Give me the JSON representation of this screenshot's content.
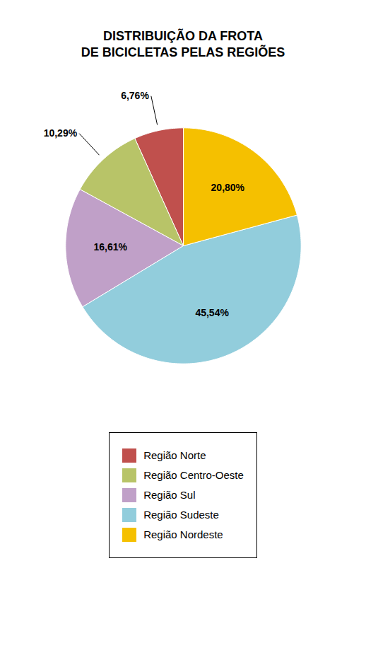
{
  "chart_data": {
    "type": "pie",
    "title": "DISTRIBUIÇÃO DA FROTA\nDE BICICLETAS PELAS REGIÕES",
    "categories": [
      "Região Norte",
      "Região Centro-Oeste",
      "Região Sul",
      "Região Sudeste",
      "Região Nordeste"
    ],
    "values": [
      6.76,
      10.29,
      16.61,
      45.54,
      20.8
    ],
    "value_labels": [
      "6,76%",
      "10,29%",
      "16,61%",
      "45,54%",
      "20,80%"
    ],
    "colors": [
      "#c0504d",
      "#b8c468",
      "#c0a0c8",
      "#92cddc",
      "#f5c000"
    ],
    "data_labels": true,
    "legend": "bottom"
  }
}
